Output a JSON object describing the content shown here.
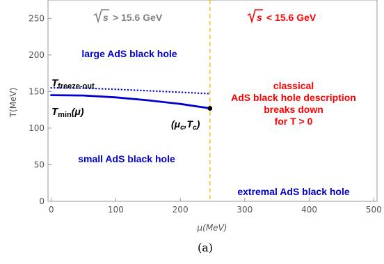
{
  "chart_data": {
    "type": "line",
    "title": "",
    "xlabel": "μ(MeV)",
    "ylabel": "T(MeV)",
    "xlim": [
      -5,
      505
    ],
    "ylim": [
      0,
      275
    ],
    "xticks": [
      0,
      100,
      200,
      300,
      400,
      500
    ],
    "yticks": [
      0,
      50,
      100,
      150,
      200,
      250
    ],
    "grid": false,
    "series": [
      {
        "name": "T_freeze-out",
        "style": "dotted",
        "color": "#0000cc",
        "x": [
          0,
          50,
          100,
          150,
          200,
          246
        ],
        "y": [
          155,
          154.5,
          153,
          151,
          149,
          147
        ]
      },
      {
        "name": "T_min(μ)",
        "style": "solid",
        "color": "#0000cc",
        "x": [
          0,
          50,
          100,
          150,
          200,
          246
        ],
        "y": [
          145,
          144.5,
          142,
          138,
          133,
          127
        ]
      }
    ],
    "vline": {
      "x": 246,
      "style": "dashed",
      "color": "#f0c000"
    },
    "point": {
      "x": 246,
      "y": 127,
      "label_main": "(μ",
      "label_sub1": "c",
      "label_mid": ",T",
      "label_sub2": "c",
      "label_end": ")"
    },
    "annotations": {
      "sqrt_left": {
        "text": "> 15.6 GeV",
        "color": "#808080"
      },
      "sqrt_right": {
        "text": "< 15.6 GeV",
        "color": "#ff0000"
      },
      "large_bh": {
        "text": "large AdS black hole",
        "color": "#0000cc"
      },
      "small_bh": {
        "text": "small AdS black hole",
        "color": "#0000cc"
      },
      "extremal_bh": {
        "text": "extremal AdS black hole",
        "color": "#0000cc"
      },
      "classical": {
        "lines": [
          "classical",
          "AdS black hole description",
          "breaks down",
          "for T > 0"
        ],
        "color": "#ff0000"
      },
      "t_freeze": {
        "main": "T",
        "sub": "freeze-out"
      },
      "t_min": {
        "main": "T",
        "sub": "min",
        "tail": "(μ)"
      }
    }
  },
  "caption": "(a)"
}
